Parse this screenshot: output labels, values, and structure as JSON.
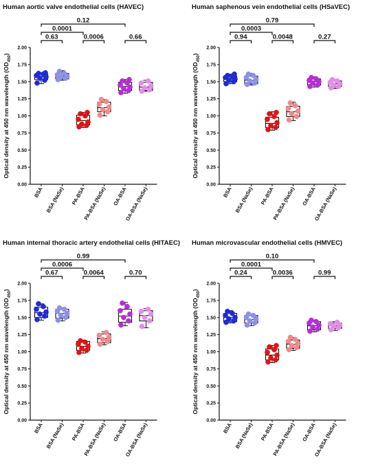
{
  "y_axis_label": "Optical density at 450 nm wavelength (OD",
  "y_axis_label_subscript": "450",
  "y_axis_label_close": ")",
  "colors": {
    "BSA": "#1f2bd6",
    "BSA (NaSe)": "#8c91ea",
    "PA-BSA": "#e01414",
    "PA-BSA (NaSe)": "#f08a8a",
    "OA-BSA": "#b62ed8",
    "OA-BSA (NaSe)": "#e28ee8"
  },
  "chart_data": [
    {
      "type": "box",
      "title": "Human aortic valve endothelial cells (HAVEC)",
      "categories": [
        "BSA",
        "BSA (NaSe)",
        "PA-BSA",
        "PA-BSA (NaSe)",
        "OA-BSA",
        "OA-BSA (NaSe)"
      ],
      "ylim": [
        0,
        2.0
      ],
      "yticks": [
        "0.00",
        "0.25",
        "0.50",
        "0.75",
        "1.00",
        "1.25",
        "1.50",
        "1.75",
        "2.00"
      ],
      "boxes": [
        {
          "min": 1.47,
          "q1": 1.53,
          "median": 1.57,
          "q3": 1.61,
          "max": 1.63
        },
        {
          "min": 1.52,
          "q1": 1.54,
          "median": 1.58,
          "q3": 1.62,
          "max": 1.66
        },
        {
          "min": 0.83,
          "q1": 0.87,
          "median": 0.93,
          "q3": 1.01,
          "max": 1.05
        },
        {
          "min": 1.0,
          "q1": 1.06,
          "median": 1.12,
          "q3": 1.2,
          "max": 1.24
        },
        {
          "min": 1.33,
          "q1": 1.37,
          "median": 1.43,
          "q3": 1.49,
          "max": 1.53
        },
        {
          "min": 1.36,
          "q1": 1.37,
          "median": 1.42,
          "q3": 1.49,
          "max": 1.52
        }
      ],
      "points": [
        [
          1.48,
          1.52,
          1.55,
          1.57,
          1.59,
          1.61,
          1.62,
          1.63
        ],
        [
          1.53,
          1.55,
          1.57,
          1.58,
          1.6,
          1.62,
          1.65
        ],
        [
          0.84,
          0.86,
          0.88,
          0.91,
          0.95,
          1.0,
          1.03,
          1.05
        ],
        [
          1.01,
          1.06,
          1.09,
          1.13,
          1.17,
          1.21,
          1.24
        ],
        [
          1.34,
          1.37,
          1.4,
          1.42,
          1.45,
          1.48,
          1.51,
          1.53
        ],
        [
          1.36,
          1.38,
          1.41,
          1.44,
          1.48,
          1.51
        ]
      ],
      "comparisons": [
        {
          "i": 0,
          "j": 4,
          "label": "0.12"
        },
        {
          "i": 0,
          "j": 2,
          "label": "0.0001"
        },
        {
          "i": 0,
          "j": 1,
          "label": "0.63"
        },
        {
          "i": 2,
          "j": 3,
          "label": "0.0006"
        },
        {
          "i": 4,
          "j": 5,
          "label": "0.66"
        }
      ]
    },
    {
      "type": "box",
      "title": "Human saphenous vein endothelial cells (HSaVEC)",
      "categories": [
        "BSA",
        "BSA (NaSe)",
        "PA-BSA",
        "PA-BSA (NaSe)",
        "OA-BSA",
        "OA-BSA (NaSe)"
      ],
      "ylim": [
        0,
        2.0
      ],
      "yticks": [
        "0.00",
        "0.25",
        "0.50",
        "0.75",
        "1.00",
        "1.25",
        "1.50",
        "1.75",
        "2.00"
      ],
      "boxes": [
        {
          "min": 1.47,
          "q1": 1.5,
          "median": 1.54,
          "q3": 1.58,
          "max": 1.61
        },
        {
          "min": 1.45,
          "q1": 1.47,
          "median": 1.52,
          "q3": 1.58,
          "max": 1.62
        },
        {
          "min": 0.79,
          "q1": 0.83,
          "median": 0.89,
          "q3": 0.98,
          "max": 1.06
        },
        {
          "min": 0.93,
          "q1": 0.99,
          "median": 1.06,
          "q3": 1.14,
          "max": 1.2
        },
        {
          "min": 1.42,
          "q1": 1.45,
          "median": 1.5,
          "q3": 1.54,
          "max": 1.57
        },
        {
          "min": 1.4,
          "q1": 1.43,
          "median": 1.47,
          "q3": 1.51,
          "max": 1.53
        }
      ],
      "points": [
        [
          1.47,
          1.5,
          1.52,
          1.54,
          1.56,
          1.57,
          1.59,
          1.61
        ],
        [
          1.46,
          1.48,
          1.51,
          1.53,
          1.56,
          1.59,
          1.61
        ],
        [
          0.8,
          0.83,
          0.86,
          0.9,
          0.95,
          0.99,
          1.03,
          1.05
        ],
        [
          0.94,
          0.99,
          1.03,
          1.07,
          1.11,
          1.15,
          1.19
        ],
        [
          1.43,
          1.45,
          1.48,
          1.5,
          1.52,
          1.54,
          1.56
        ],
        [
          1.41,
          1.43,
          1.45,
          1.47,
          1.49,
          1.51,
          1.53
        ]
      ],
      "comparisons": [
        {
          "i": 0,
          "j": 4,
          "label": "0.79"
        },
        {
          "i": 0,
          "j": 2,
          "label": "0.0003"
        },
        {
          "i": 0,
          "j": 1,
          "label": "0.94"
        },
        {
          "i": 2,
          "j": 3,
          "label": "0.0048"
        },
        {
          "i": 4,
          "j": 5,
          "label": "0.27"
        }
      ]
    },
    {
      "type": "box",
      "title": "Human internal thoracic artery endothelial cells (HITAEC)",
      "categories": [
        "BSA",
        "BSA (NaSe)",
        "PA-BSA",
        "PA-BSA (NaSe)",
        "OA-BSA",
        "OA-BSA (NaSe)"
      ],
      "ylim": [
        0,
        2.0
      ],
      "yticks": [
        "0.00",
        "0.25",
        "0.50",
        "0.75",
        "1.00",
        "1.25",
        "1.50",
        "1.75",
        "2.00"
      ],
      "boxes": [
        {
          "min": 1.46,
          "q1": 1.5,
          "median": 1.57,
          "q3": 1.65,
          "max": 1.7
        },
        {
          "min": 1.45,
          "q1": 1.49,
          "median": 1.56,
          "q3": 1.62,
          "max": 1.64
        },
        {
          "min": 0.98,
          "q1": 1.02,
          "median": 1.08,
          "q3": 1.15,
          "max": 1.17
        },
        {
          "min": 1.1,
          "q1": 1.13,
          "median": 1.19,
          "q3": 1.26,
          "max": 1.29
        },
        {
          "min": 1.38,
          "q1": 1.43,
          "median": 1.52,
          "q3": 1.62,
          "max": 1.72
        },
        {
          "min": 1.35,
          "q1": 1.45,
          "median": 1.53,
          "q3": 1.6,
          "max": 1.63
        }
      ],
      "points": [
        [
          1.47,
          1.52,
          1.55,
          1.58,
          1.62,
          1.66,
          1.7
        ],
        [
          1.46,
          1.5,
          1.53,
          1.56,
          1.59,
          1.62,
          1.64
        ],
        [
          0.99,
          1.02,
          1.05,
          1.08,
          1.11,
          1.14,
          1.16
        ],
        [
          1.11,
          1.15,
          1.18,
          1.21,
          1.24,
          1.28
        ],
        [
          1.39,
          1.45,
          1.5,
          1.55,
          1.6,
          1.66,
          1.71
        ],
        [
          1.37,
          1.45,
          1.5,
          1.55,
          1.59,
          1.62
        ]
      ],
      "comparisons": [
        {
          "i": 0,
          "j": 4,
          "label": "0.99"
        },
        {
          "i": 0,
          "j": 2,
          "label": "0.0006"
        },
        {
          "i": 0,
          "j": 1,
          "label": "0.67"
        },
        {
          "i": 2,
          "j": 3,
          "label": "0.0064"
        },
        {
          "i": 4,
          "j": 5,
          "label": "0.70"
        }
      ]
    },
    {
      "type": "box",
      "title": "Human microvascular endothelial cells (HMVEC)",
      "categories": [
        "BSA",
        "BSA (NaSe)",
        "PA-BSA",
        "PA-BSA (NaSe)",
        "OA-BSA",
        "OA-BSA (NaSe)"
      ],
      "ylim": [
        0,
        2.0
      ],
      "yticks": [
        "0.00",
        "0.25",
        "0.50",
        "0.75",
        "1.00",
        "1.25",
        "1.50",
        "1.75",
        "2.00"
      ],
      "boxes": [
        {
          "min": 1.42,
          "q1": 1.44,
          "median": 1.5,
          "q3": 1.56,
          "max": 1.6
        },
        {
          "min": 1.38,
          "q1": 1.42,
          "median": 1.47,
          "q3": 1.53,
          "max": 1.55
        },
        {
          "min": 0.84,
          "q1": 0.88,
          "median": 0.95,
          "q3": 1.04,
          "max": 1.09
        },
        {
          "min": 1.02,
          "q1": 1.05,
          "median": 1.11,
          "q3": 1.17,
          "max": 1.21
        },
        {
          "min": 1.29,
          "q1": 1.32,
          "median": 1.38,
          "q3": 1.44,
          "max": 1.46
        },
        {
          "min": 1.31,
          "q1": 1.34,
          "median": 1.38,
          "q3": 1.42,
          "max": 1.44
        }
      ],
      "points": [
        [
          1.43,
          1.45,
          1.48,
          1.5,
          1.53,
          1.56,
          1.59
        ],
        [
          1.39,
          1.42,
          1.45,
          1.48,
          1.5,
          1.53,
          1.55
        ],
        [
          0.85,
          0.88,
          0.91,
          0.95,
          0.99,
          1.03,
          1.07,
          1.09
        ],
        [
          1.03,
          1.06,
          1.09,
          1.12,
          1.15,
          1.18,
          1.21
        ],
        [
          1.3,
          1.33,
          1.36,
          1.39,
          1.42,
          1.44,
          1.46
        ],
        [
          1.32,
          1.35,
          1.37,
          1.39,
          1.41,
          1.43
        ]
      ],
      "comparisons": [
        {
          "i": 0,
          "j": 4,
          "label": "0.10"
        },
        {
          "i": 0,
          "j": 2,
          "label": "0.0001"
        },
        {
          "i": 0,
          "j": 1,
          "label": "0.24"
        },
        {
          "i": 2,
          "j": 3,
          "label": "0.0036"
        },
        {
          "i": 4,
          "j": 5,
          "label": "0.99"
        }
      ]
    }
  ]
}
